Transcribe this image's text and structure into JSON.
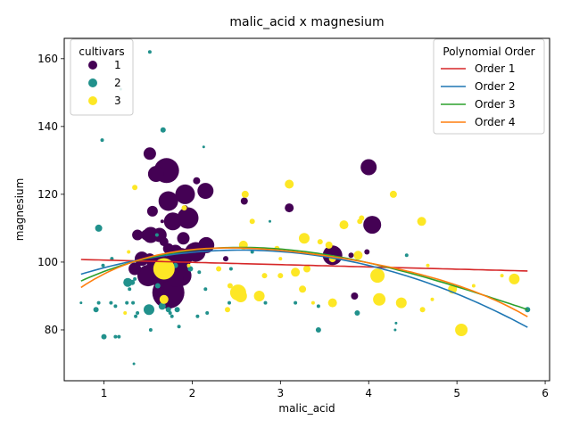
{
  "chart_data": {
    "type": "scatter",
    "title": "malic_acid x magnesium",
    "xlabel": "malic_acid",
    "ylabel": "magnesium",
    "xlim": [
      0.55,
      6.05
    ],
    "ylim": [
      65,
      166
    ],
    "xticks": [
      "1",
      "2",
      "3",
      "4",
      "5",
      "6"
    ],
    "xtick_values": [
      1,
      2,
      3,
      4,
      5,
      6
    ],
    "yticks": [
      "80",
      "100",
      "120",
      "140",
      "160"
    ],
    "ytick_values": [
      80,
      100,
      120,
      140,
      160
    ],
    "grid": false,
    "cultivar_legend": {
      "title": "cultivars",
      "placement": "top-left",
      "entries": [
        {
          "label": "1",
          "color": "#440154"
        },
        {
          "label": "2",
          "color": "#21918c"
        },
        {
          "label": "3",
          "color": "#fde725"
        }
      ]
    },
    "fit_legend": {
      "title": "Polynomial Order",
      "placement": "top-right",
      "entries": [
        {
          "label": "Order 1",
          "color": "#d62728"
        },
        {
          "label": "Order 2",
          "color": "#1f77b4"
        },
        {
          "label": "Order 3",
          "color": "#2ca02c"
        },
        {
          "label": "Order 4",
          "color": "#ff7f0e"
        }
      ]
    },
    "fit_lines": [
      {
        "order": 1,
        "color": "#d62728",
        "coefficients": [
          101.26,
          -0.67
        ]
      },
      {
        "order": 2,
        "color": "#1f77b4",
        "coefficients": [
          89.45,
          11.03,
          -2.16
        ]
      },
      {
        "order": 3,
        "color": "#2ca02c",
        "coefficients": [
          83.48,
          17.95,
          -4.47,
          0.25
        ]
      },
      {
        "order": 4,
        "color": "#ff7f0e",
        "coefficients": [
          74.26,
          33.08,
          -12.86,
          2.13,
          -0.146
        ]
      }
    ],
    "series": [
      {
        "name": "1",
        "color": "#440154",
        "points": [
          [
            1.71,
            127,
            14
          ],
          [
            1.59,
            126,
            9
          ],
          [
            1.52,
            132,
            7
          ],
          [
            1.73,
            118,
            11
          ],
          [
            1.78,
            112,
            10
          ],
          [
            1.92,
            120,
            11
          ],
          [
            1.95,
            113,
            12
          ],
          [
            2.15,
            121,
            9
          ],
          [
            1.55,
            115,
            6
          ],
          [
            1.48,
            108,
            6
          ],
          [
            1.53,
            108,
            9
          ],
          [
            1.63,
            108,
            8
          ],
          [
            1.68,
            106,
            5
          ],
          [
            1.38,
            108,
            6
          ],
          [
            1.52,
            101,
            6
          ],
          [
            1.73,
            104,
            6
          ],
          [
            1.87,
            101,
            12
          ],
          [
            1.81,
            103,
            8
          ],
          [
            1.9,
            107,
            7
          ],
          [
            2.04,
            103,
            11
          ],
          [
            2.16,
            105,
            9
          ],
          [
            1.95,
            102,
            8
          ],
          [
            1.66,
            98,
            10
          ],
          [
            1.87,
            96,
            12
          ],
          [
            1.67,
            95,
            11
          ],
          [
            1.73,
            91,
            18
          ],
          [
            1.64,
            98,
            16
          ],
          [
            1.8,
            101,
            9
          ],
          [
            1.5,
            96,
            12
          ],
          [
            1.35,
            98,
            7
          ],
          [
            1.55,
            99,
            6
          ],
          [
            1.43,
            101,
            8
          ],
          [
            1.77,
            100,
            7
          ],
          [
            1.62,
            94,
            6
          ],
          [
            1.76,
            97,
            8
          ],
          [
            2.02,
            103,
            10
          ],
          [
            1.81,
            95,
            9
          ],
          [
            4.0,
            128,
            9
          ],
          [
            4.04,
            111,
            10
          ],
          [
            3.59,
            102,
            11
          ],
          [
            3.1,
            116,
            5
          ],
          [
            2.59,
            118,
            4
          ],
          [
            2.05,
            124,
            4
          ],
          [
            3.98,
            103,
            3
          ],
          [
            3.8,
            102,
            3
          ],
          [
            3.84,
            90,
            4
          ],
          [
            2.38,
            101,
            3
          ],
          [
            1.92,
            116,
            3
          ],
          [
            1.66,
            112,
            2
          ],
          [
            1.58,
            95,
            2
          ]
        ]
      },
      {
        "name": "2",
        "color": "#21918c",
        "points": [
          [
            1.52,
            162,
            2
          ],
          [
            1.67,
            139,
            3
          ],
          [
            0.98,
            136,
            2
          ],
          [
            2.13,
            134,
            1.5
          ],
          [
            1.19,
            151,
            1.5
          ],
          [
            0.94,
            110,
            4
          ],
          [
            0.99,
            99,
            2
          ],
          [
            1.09,
            101,
            2
          ],
          [
            0.91,
            86,
            3
          ],
          [
            0.94,
            88,
            2
          ],
          [
            1.0,
            78,
            3
          ],
          [
            1.13,
            78,
            2
          ],
          [
            1.17,
            78,
            2
          ],
          [
            1.08,
            88,
            2
          ],
          [
            1.13,
            87,
            2
          ],
          [
            1.27,
            94,
            5
          ],
          [
            1.26,
            88,
            2
          ],
          [
            1.36,
            84,
            2
          ],
          [
            1.38,
            85,
            2
          ],
          [
            1.32,
            94,
            3
          ],
          [
            1.29,
            92,
            2
          ],
          [
            1.35,
            95,
            2
          ],
          [
            1.33,
            88,
            2
          ],
          [
            1.51,
            86,
            6
          ],
          [
            1.53,
            80,
            2
          ],
          [
            1.61,
            93,
            3
          ],
          [
            1.66,
            87,
            4
          ],
          [
            1.73,
            86,
            3
          ],
          [
            1.77,
            84,
            2
          ],
          [
            1.75,
            85,
            2
          ],
          [
            1.83,
            86,
            3
          ],
          [
            1.85,
            81,
            2
          ],
          [
            1.81,
            99,
            3
          ],
          [
            2.08,
            97,
            2
          ],
          [
            2.15,
            92,
            2
          ],
          [
            1.98,
            98,
            3
          ],
          [
            2.06,
            84,
            2
          ],
          [
            2.17,
            85,
            2
          ],
          [
            2.42,
            88,
            2
          ],
          [
            2.44,
            98,
            2
          ],
          [
            2.68,
            103,
            2
          ],
          [
            2.83,
            88,
            2
          ],
          [
            2.88,
            112,
            1.5
          ],
          [
            3.17,
            88,
            2
          ],
          [
            3.43,
            87,
            2
          ],
          [
            3.43,
            80,
            3
          ],
          [
            3.87,
            85,
            3
          ],
          [
            4.31,
            82,
            1.5
          ],
          [
            4.3,
            80,
            1.5
          ],
          [
            4.43,
            102,
            2
          ],
          [
            5.8,
            86,
            3
          ],
          [
            0.74,
            88,
            1.5
          ],
          [
            1.34,
            70,
            1.5
          ],
          [
            1.6,
            108,
            2
          ]
        ]
      },
      {
        "name": "3",
        "color": "#fde725",
        "points": [
          [
            1.68,
            98,
            12
          ],
          [
            2.52,
            91,
            9
          ],
          [
            2.55,
            90,
            7
          ],
          [
            2.76,
            90,
            6
          ],
          [
            3.27,
            107,
            6
          ],
          [
            3.1,
            123,
            5
          ],
          [
            3.72,
            111,
            5
          ],
          [
            4.1,
            96,
            8
          ],
          [
            4.12,
            89,
            7
          ],
          [
            4.37,
            88,
            6
          ],
          [
            4.95,
            92,
            5
          ],
          [
            5.05,
            80,
            7
          ],
          [
            5.65,
            95,
            6
          ],
          [
            4.6,
            112,
            5
          ],
          [
            4.28,
            120,
            4
          ],
          [
            3.88,
            102,
            5
          ],
          [
            3.59,
            101,
            4
          ],
          [
            3.55,
            105,
            4
          ],
          [
            3.45,
            106,
            3
          ],
          [
            3.3,
            98,
            4
          ],
          [
            3.17,
            97,
            5
          ],
          [
            3.25,
            92,
            4
          ],
          [
            3.0,
            96,
            3
          ],
          [
            2.82,
            96,
            3
          ],
          [
            2.6,
            120,
            4
          ],
          [
            2.58,
            105,
            5
          ],
          [
            2.68,
            112,
            3
          ],
          [
            2.96,
            104,
            3
          ],
          [
            2.43,
            93,
            3
          ],
          [
            2.4,
            86,
            3
          ],
          [
            2.3,
            98,
            3
          ],
          [
            1.91,
            116,
            3
          ],
          [
            1.68,
            89,
            5
          ],
          [
            1.35,
            122,
            3
          ],
          [
            1.28,
            103,
            2
          ],
          [
            1.24,
            85,
            2
          ],
          [
            3.59,
            88,
            5
          ],
          [
            3.37,
            88,
            2
          ],
          [
            3.92,
            113,
            3
          ],
          [
            3.9,
            112,
            3
          ],
          [
            4.61,
            86,
            3
          ],
          [
            4.72,
            89,
            2
          ],
          [
            5.51,
            96,
            2
          ],
          [
            5.19,
            93,
            2
          ],
          [
            3.0,
            101,
            2
          ],
          [
            1.96,
            99,
            2
          ],
          [
            4.67,
            99,
            2
          ],
          [
            2.5,
            92,
            2
          ]
        ]
      }
    ]
  }
}
